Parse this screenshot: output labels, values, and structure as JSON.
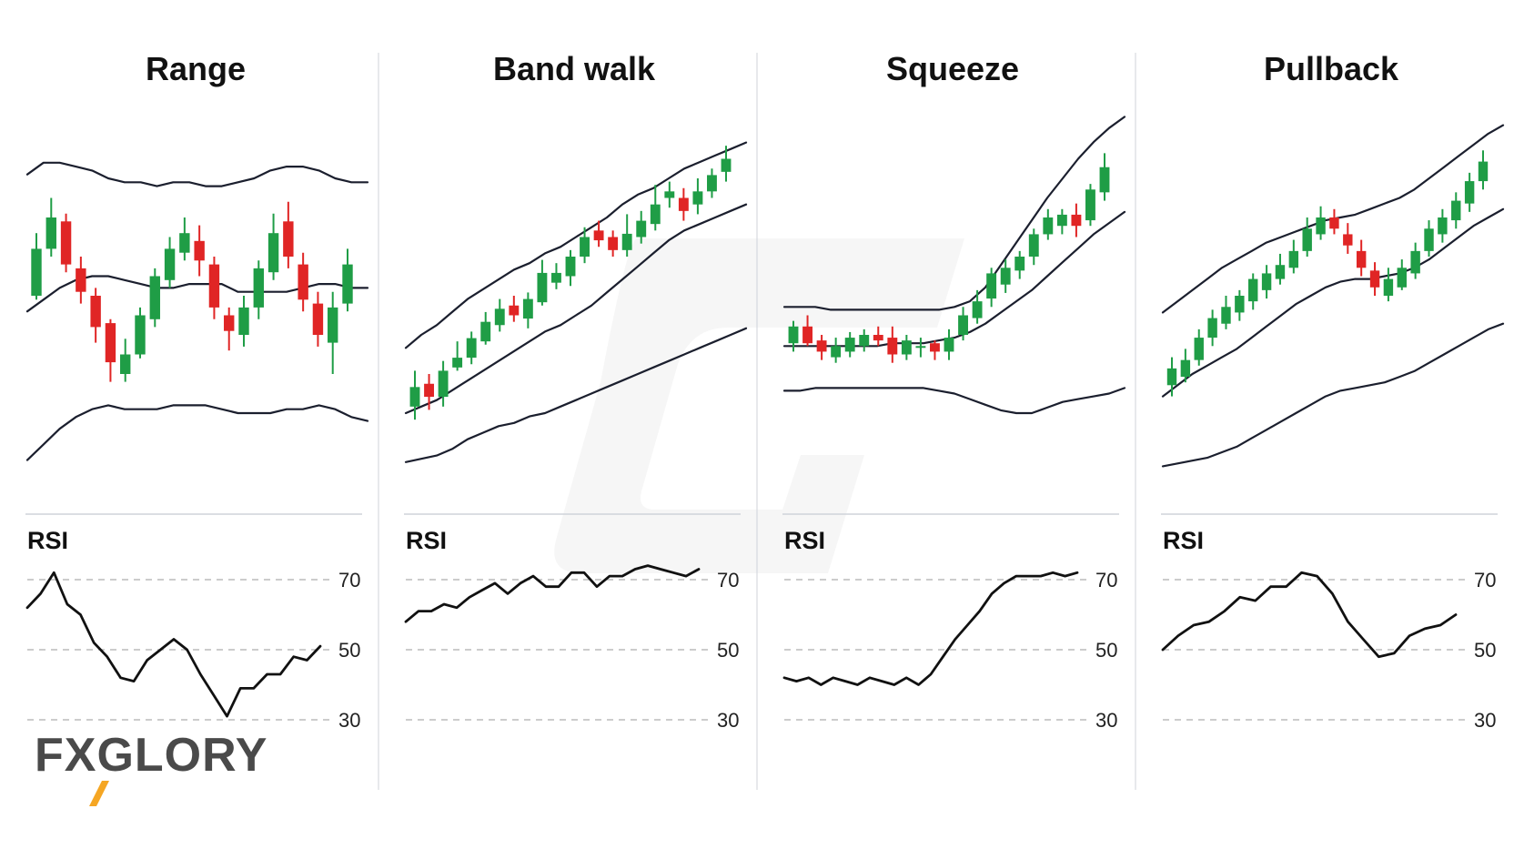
{
  "brand": {
    "logo_text": "FXGLORY",
    "accent_color": "#f5a623",
    "text_color": "#4a4a4a"
  },
  "colors": {
    "bull": "#1f9d46",
    "bear": "#e02525",
    "line": "#1b1f2e",
    "grid": "#bbbbbb",
    "divider": "#cfd3da"
  },
  "rsi_label": "RSI",
  "chart_data": [
    {
      "type": "candlestick",
      "title": "Range",
      "candles": [
        [
          50,
          62,
          66,
          49
        ],
        [
          62,
          70,
          75,
          60
        ],
        [
          69,
          58,
          71,
          56
        ],
        [
          57,
          51,
          60,
          48
        ],
        [
          50,
          42,
          52,
          38
        ],
        [
          43,
          33,
          44,
          28
        ],
        [
          30,
          35,
          39,
          28
        ],
        [
          35,
          45,
          47,
          34
        ],
        [
          44,
          55,
          57,
          42
        ],
        [
          54,
          62,
          65,
          52
        ],
        [
          61,
          66,
          70,
          59
        ],
        [
          64,
          59,
          68,
          55
        ],
        [
          58,
          47,
          60,
          44
        ],
        [
          45,
          41,
          47,
          36
        ],
        [
          40,
          47,
          50,
          37
        ],
        [
          47,
          57,
          59,
          44
        ],
        [
          56,
          66,
          71,
          54
        ],
        [
          69,
          60,
          74,
          57
        ],
        [
          58,
          49,
          61,
          46
        ],
        [
          48,
          40,
          51,
          37
        ],
        [
          38,
          47,
          51,
          30
        ],
        [
          48,
          58,
          62,
          46
        ]
      ],
      "upper_band": [
        81,
        84,
        84,
        83,
        82,
        80,
        79,
        79,
        78,
        79,
        79,
        78,
        78,
        79,
        80,
        82,
        83,
        83,
        82,
        80,
        79,
        79
      ],
      "middle_band": [
        46,
        49,
        52,
        54,
        55,
        55,
        54,
        53,
        52,
        52,
        53,
        53,
        53,
        51,
        51,
        51,
        51,
        52,
        53,
        53,
        52,
        52
      ],
      "lower_band": [
        8,
        12,
        16,
        19,
        21,
        22,
        21,
        21,
        21,
        22,
        22,
        22,
        21,
        20,
        20,
        20,
        21,
        21,
        22,
        21,
        19,
        18
      ],
      "price_ylim": [
        0,
        100
      ],
      "rsi": [
        62,
        66,
        72,
        63,
        60,
        52,
        48,
        42,
        41,
        47,
        50,
        53,
        50,
        43,
        37,
        31,
        39,
        39,
        43,
        43,
        48,
        47,
        51
      ],
      "rsi_ylim": [
        20,
        80
      ],
      "rsi_levels": [
        70,
        50,
        30
      ]
    },
    {
      "type": "candlestick",
      "title": "Band walk",
      "candles": [
        [
          16,
          22,
          27,
          12
        ],
        [
          23,
          19,
          26,
          15
        ],
        [
          19,
          27,
          30,
          16
        ],
        [
          28,
          31,
          36,
          27
        ],
        [
          31,
          37,
          39,
          29
        ],
        [
          36,
          42,
          45,
          35
        ],
        [
          41,
          46,
          49,
          39
        ],
        [
          47,
          44,
          50,
          42
        ],
        [
          43,
          49,
          51,
          40
        ],
        [
          48,
          57,
          61,
          47
        ],
        [
          54,
          57,
          60,
          52
        ],
        [
          56,
          62,
          64,
          53
        ],
        [
          62,
          68,
          71,
          60
        ],
        [
          70,
          67,
          73,
          65
        ],
        [
          68,
          64,
          70,
          62
        ],
        [
          64,
          69,
          75,
          62
        ],
        [
          68,
          73,
          76,
          66
        ],
        [
          72,
          78,
          84,
          70
        ],
        [
          80,
          82,
          85,
          77
        ],
        [
          80,
          76,
          83,
          73
        ],
        [
          78,
          82,
          86,
          75
        ],
        [
          82,
          87,
          89,
          80
        ],
        [
          88,
          92,
          96,
          85
        ]
      ],
      "upper_band": [
        34,
        38,
        41,
        45,
        49,
        52,
        55,
        58,
        60,
        63,
        65,
        68,
        71,
        74,
        78,
        81,
        83,
        86,
        89,
        91,
        93,
        95,
        97
      ],
      "middle_band": [
        14,
        16,
        18,
        21,
        24,
        27,
        30,
        33,
        36,
        39,
        41,
        44,
        47,
        51,
        55,
        59,
        63,
        67,
        70,
        72,
        74,
        76,
        78
      ],
      "lower_band": [
        -1,
        0,
        1,
        3,
        6,
        8,
        10,
        11,
        13,
        14,
        16,
        18,
        20,
        22,
        24,
        26,
        28,
        30,
        32,
        34,
        36,
        38,
        40
      ],
      "price_ylim": [
        -10,
        110
      ],
      "rsi": [
        58,
        61,
        61,
        63,
        62,
        65,
        67,
        69,
        66,
        69,
        71,
        68,
        68,
        72,
        72,
        68,
        71,
        71,
        73,
        74,
        73,
        72,
        71,
        73
      ],
      "rsi_ylim": [
        20,
        80
      ],
      "rsi_levels": [
        70,
        50,
        30
      ]
    },
    {
      "type": "candlestick",
      "title": "Squeeze",
      "candles": [
        [
          43,
          49,
          51,
          40
        ],
        [
          49,
          43,
          53,
          42
        ],
        [
          44,
          40,
          46,
          37
        ],
        [
          38,
          42,
          45,
          36
        ],
        [
          40,
          45,
          47,
          38
        ],
        [
          42,
          46,
          48,
          40
        ],
        [
          46,
          44,
          49,
          42
        ],
        [
          45,
          39,
          49,
          36
        ],
        [
          39,
          44,
          46,
          37
        ],
        [
          42,
          42,
          45,
          38
        ],
        [
          43,
          40,
          44,
          37
        ],
        [
          40,
          45,
          48,
          37
        ],
        [
          46,
          53,
          56,
          44
        ],
        [
          52,
          58,
          62,
          50
        ],
        [
          59,
          68,
          70,
          56
        ],
        [
          64,
          70,
          73,
          61
        ],
        [
          69,
          74,
          76,
          66
        ],
        [
          74,
          82,
          84,
          71
        ],
        [
          82,
          88,
          91,
          80
        ],
        [
          85,
          89,
          91,
          82
        ],
        [
          89,
          85,
          93,
          81
        ],
        [
          87,
          98,
          100,
          85
        ],
        [
          97,
          106,
          111,
          94
        ]
      ],
      "upper_band": [
        56,
        56,
        56,
        55,
        55,
        55,
        55,
        55,
        55,
        55,
        55,
        56,
        58,
        63,
        71,
        79,
        87,
        95,
        102,
        109,
        115,
        120,
        124
      ],
      "middle_band": [
        42,
        42,
        42,
        42,
        42,
        42,
        42,
        43,
        43,
        43,
        44,
        45,
        47,
        50,
        54,
        58,
        62,
        67,
        72,
        77,
        82,
        86,
        90
      ],
      "lower_band": [
        26,
        26,
        27,
        27,
        27,
        27,
        27,
        27,
        27,
        27,
        26,
        25,
        23,
        21,
        19,
        18,
        18,
        20,
        22,
        23,
        24,
        25,
        27
      ],
      "price_ylim": [
        -10,
        130
      ],
      "rsi": [
        42,
        41,
        42,
        40,
        42,
        41,
        40,
        42,
        41,
        40,
        42,
        40,
        43,
        48,
        53,
        57,
        61,
        66,
        69,
        71,
        71,
        71,
        72,
        71,
        72
      ],
      "rsi_ylim": [
        20,
        80
      ],
      "rsi_levels": [
        70,
        50,
        30
      ]
    },
    {
      "type": "candlestick",
      "title": "Pullback",
      "candles": [
        [
          28,
          34,
          38,
          24
        ],
        [
          31,
          37,
          41,
          29
        ],
        [
          37,
          45,
          48,
          35
        ],
        [
          45,
          52,
          55,
          42
        ],
        [
          50,
          56,
          60,
          48
        ],
        [
          54,
          60,
          62,
          51
        ],
        [
          58,
          66,
          68,
          55
        ],
        [
          62,
          68,
          71,
          59
        ],
        [
          66,
          71,
          75,
          64
        ],
        [
          70,
          76,
          80,
          68
        ],
        [
          76,
          84,
          88,
          74
        ],
        [
          82,
          88,
          92,
          80
        ],
        [
          88,
          84,
          91,
          82
        ],
        [
          82,
          78,
          86,
          75
        ],
        [
          76,
          70,
          80,
          67
        ],
        [
          69,
          63,
          72,
          60
        ],
        [
          60,
          66,
          70,
          58
        ],
        [
          63,
          70,
          73,
          62
        ],
        [
          68,
          76,
          79,
          66
        ],
        [
          76,
          84,
          87,
          74
        ],
        [
          82,
          88,
          91,
          79
        ],
        [
          87,
          94,
          97,
          84
        ],
        [
          93,
          101,
          104,
          90
        ],
        [
          101,
          108,
          112,
          98
        ]
      ],
      "upper_band": [
        54,
        58,
        62,
        66,
        70,
        73,
        76,
        79,
        81,
        83,
        85,
        87,
        88,
        89,
        91,
        93,
        95,
        98,
        102,
        106,
        110,
        114,
        118,
        121
      ],
      "middle_band": [
        24,
        28,
        32,
        35,
        38,
        41,
        45,
        49,
        53,
        57,
        60,
        63,
        65,
        66,
        66,
        67,
        68,
        70,
        73,
        77,
        81,
        85,
        88,
        91
      ],
      "lower_band": [
        -1,
        0,
        1,
        2,
        4,
        6,
        9,
        12,
        15,
        18,
        21,
        24,
        26,
        27,
        28,
        29,
        31,
        33,
        36,
        39,
        42,
        45,
        48,
        50
      ],
      "price_ylim": [
        -10,
        130
      ],
      "rsi": [
        50,
        54,
        57,
        58,
        61,
        65,
        64,
        68,
        68,
        72,
        71,
        66,
        58,
        53,
        48,
        49,
        54,
        56,
        57,
        60
      ],
      "rsi_ylim": [
        20,
        80
      ],
      "rsi_levels": [
        70,
        50,
        30
      ]
    }
  ]
}
